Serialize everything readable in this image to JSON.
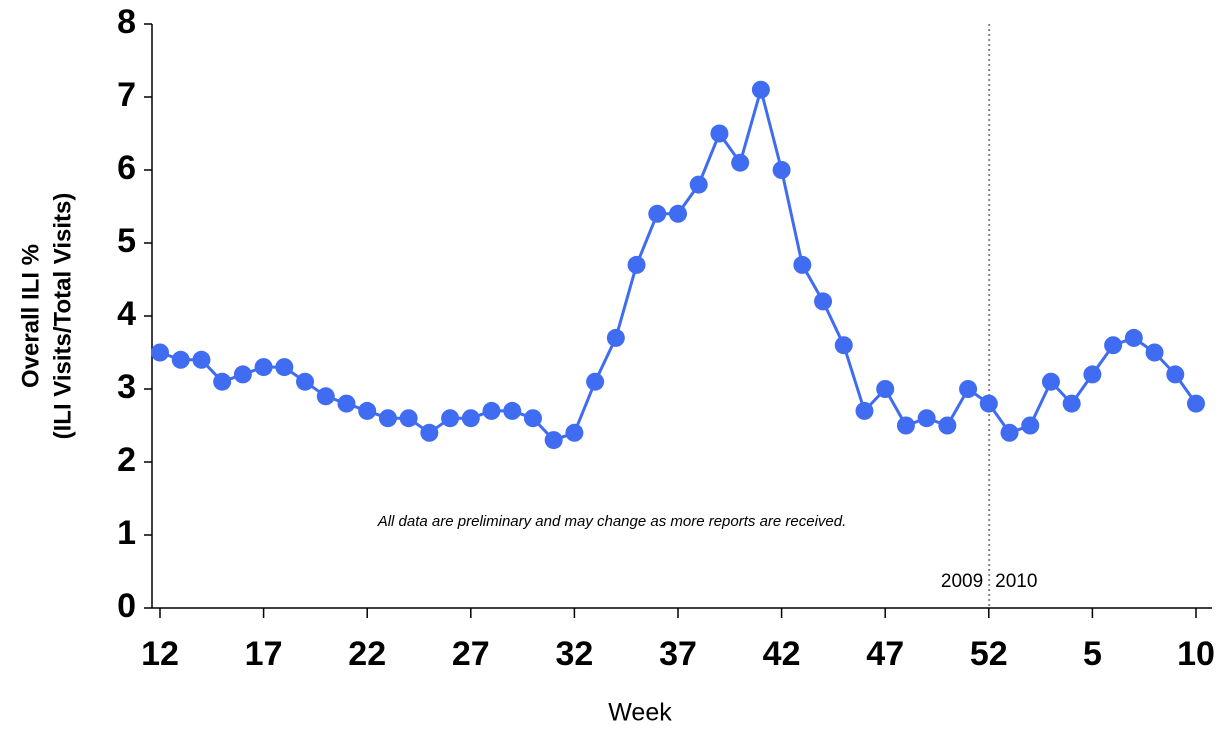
{
  "chart_data": {
    "type": "line",
    "xlabel": "Week",
    "ylabel": [
      "Overall ILI %",
      "(ILI Visits/Total Visits)"
    ],
    "categories": [
      "12",
      null,
      null,
      null,
      null,
      "17",
      null,
      null,
      null,
      null,
      "22",
      null,
      null,
      null,
      null,
      "27",
      null,
      null,
      null,
      null,
      "32",
      null,
      null,
      null,
      null,
      "37",
      null,
      null,
      null,
      null,
      "42",
      null,
      null,
      null,
      null,
      "47",
      null,
      null,
      null,
      null,
      "52",
      null,
      null,
      null,
      null,
      "5",
      null,
      null,
      null,
      null,
      "10"
    ],
    "series": [
      {
        "name": "Overall ILI %",
        "color": "#3f6cf0",
        "values": [
          3.5,
          3.4,
          3.4,
          3.1,
          3.2,
          3.3,
          3.3,
          3.1,
          2.9,
          2.8,
          2.7,
          2.6,
          2.6,
          2.4,
          2.6,
          2.6,
          2.7,
          2.7,
          2.6,
          2.3,
          2.4,
          3.1,
          3.7,
          4.7,
          5.4,
          5.4,
          5.8,
          6.5,
          6.1,
          7.1,
          6.0,
          4.7,
          4.2,
          3.6,
          2.7,
          3.0,
          2.5,
          2.6,
          2.5,
          3.0,
          2.8,
          2.4,
          2.5,
          3.1,
          2.8,
          3.2,
          3.6,
          3.7,
          3.5,
          3.2,
          2.8
        ]
      }
    ],
    "ylim": [
      0,
      8
    ],
    "yticks": [
      0,
      1,
      2,
      3,
      4,
      5,
      6,
      7,
      8
    ],
    "grid": false,
    "annotations": [
      "All data are preliminary and may change as more reports are received.",
      "2009",
      "2010"
    ]
  }
}
